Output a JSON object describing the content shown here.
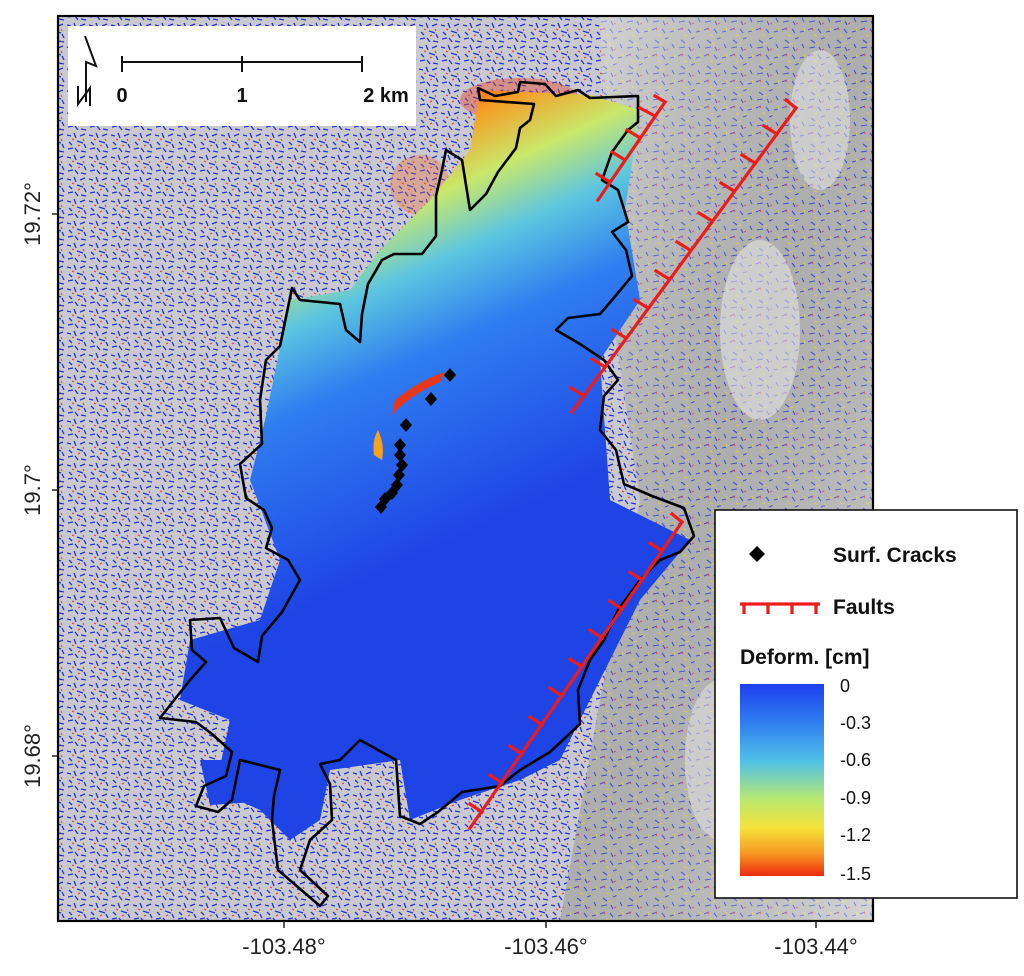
{
  "map": {
    "x_ticks": [
      "-103.48°",
      "-103.46°",
      "-103.44°"
    ],
    "y_ticks": [
      "19.72°",
      "19.7°",
      "19.68°"
    ],
    "scale_bar": {
      "labels": [
        "0",
        "1",
        "2 km"
      ]
    },
    "north_arrow_icon": "north-arrow-icon",
    "legend": {
      "cracks_label": "Surf. Cracks",
      "faults_label": "Faults",
      "colorbar_title": "Deform. [cm]",
      "colorbar_ticks": [
        "0",
        "-0.3",
        "-0.6",
        "-0.9",
        "-1.2",
        "-1.5"
      ],
      "colormap": [
        "#1e3ff0",
        "#2f7ef0",
        "#4fc0e8",
        "#b8e870",
        "#f6e23a",
        "#f79a22",
        "#ee2a10"
      ]
    },
    "colors": {
      "deformation_blue": "#1f44e6",
      "fault": "#ee1b1b",
      "outline": "#000000",
      "terrain": "#bdbdbd"
    }
  }
}
